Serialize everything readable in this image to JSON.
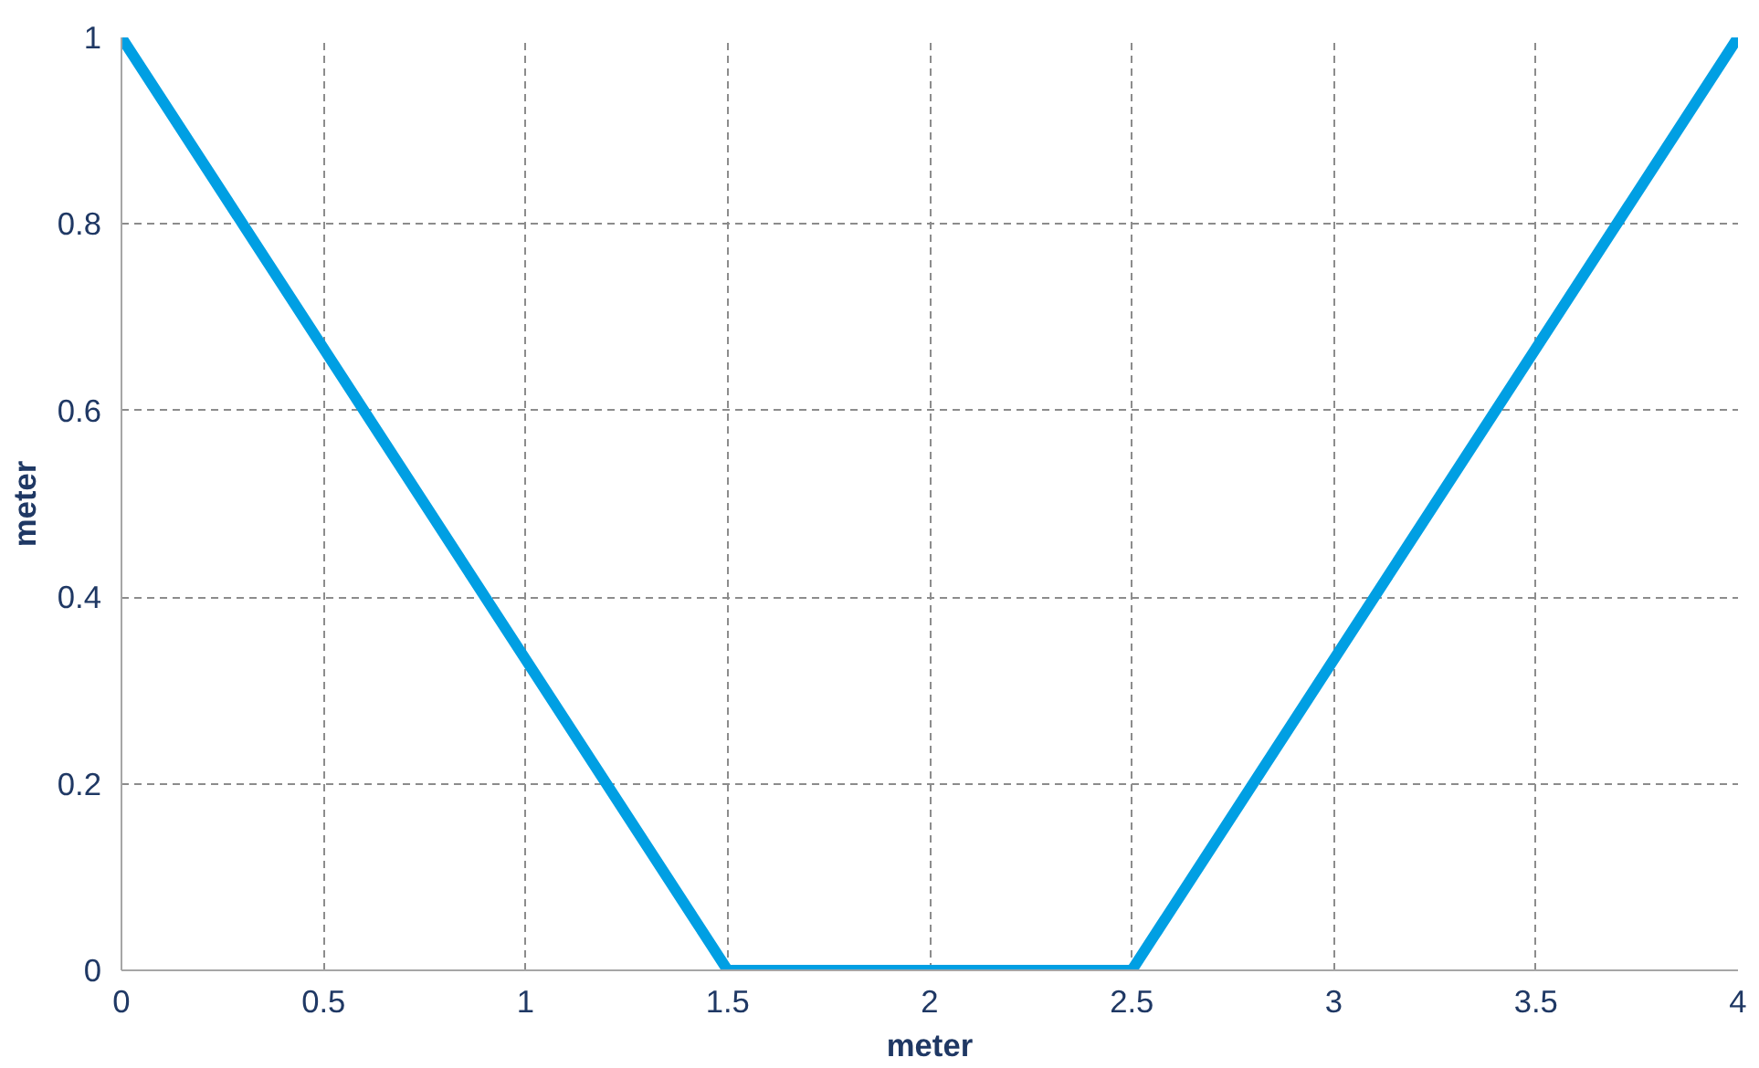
{
  "chart_data": {
    "type": "line",
    "xlabel": "meter",
    "ylabel": "meter",
    "x": [
      0,
      1.5,
      2.5,
      4
    ],
    "series": [
      {
        "color": "#009fe3",
        "values": [
          1,
          0,
          0,
          1
        ]
      }
    ],
    "xlim": [
      0,
      4
    ],
    "ylim": [
      0,
      1
    ],
    "xticks": [
      0,
      0.5,
      1,
      1.5,
      2,
      2.5,
      3,
      3.5,
      4
    ],
    "yticks": [
      0,
      0.2,
      0.4,
      0.6,
      0.8,
      1
    ],
    "grid": true,
    "marker": "none",
    "line_style": "solid"
  }
}
